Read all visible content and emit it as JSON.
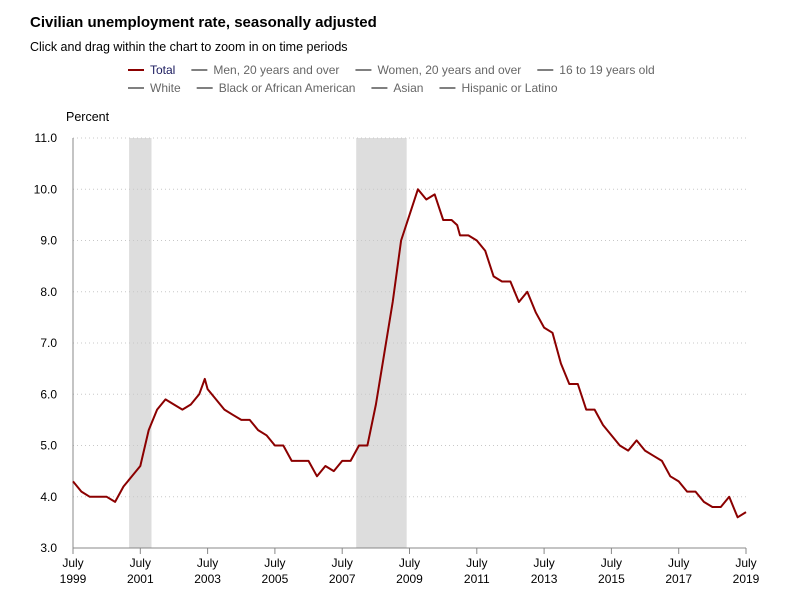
{
  "title": "Civilian unemployment rate, seasonally adjusted",
  "subtitle": "Click and drag within the chart to zoom in on time periods",
  "chart_data": {
    "type": "line",
    "ylabel": "Percent",
    "xlabel": "",
    "ylim": [
      3.0,
      11.0
    ],
    "yticks": [
      "3.0",
      "4.0",
      "5.0",
      "6.0",
      "7.0",
      "8.0",
      "9.0",
      "10.0",
      "11.0"
    ],
    "xlim": [
      "1999-07",
      "2019-07"
    ],
    "xticks": [
      {
        "month": "July",
        "year": "1999"
      },
      {
        "month": "July",
        "year": "2001"
      },
      {
        "month": "July",
        "year": "2003"
      },
      {
        "month": "July",
        "year": "2005"
      },
      {
        "month": "July",
        "year": "2007"
      },
      {
        "month": "July",
        "year": "2009"
      },
      {
        "month": "July",
        "year": "2011"
      },
      {
        "month": "July",
        "year": "2013"
      },
      {
        "month": "July",
        "year": "2015"
      },
      {
        "month": "July",
        "year": "2017"
      },
      {
        "month": "July",
        "year": "2019"
      }
    ],
    "grid": "horizontal dotted",
    "legend_placement": "top",
    "legend": [
      {
        "name": "Total",
        "active": true
      },
      {
        "name": "Men, 20 years and over",
        "active": false
      },
      {
        "name": "Women, 20 years and over",
        "active": false
      },
      {
        "name": "16 to 19 years old",
        "active": false
      },
      {
        "name": "White",
        "active": false
      },
      {
        "name": "Black or African American",
        "active": false
      },
      {
        "name": "Asian",
        "active": false
      },
      {
        "name": "Hispanic or Latino",
        "active": false
      }
    ],
    "recessions": [
      {
        "start": "2001-03",
        "end": "2001-11"
      },
      {
        "start": "2007-12",
        "end": "2009-06"
      }
    ],
    "colors": {
      "total": "#8b0000",
      "inactive": "#808080",
      "recession": "#dddddd",
      "grid": "#c8c8c8",
      "axis": "#888888"
    },
    "series": [
      {
        "name": "Total",
        "x": [
          "1999-07",
          "1999-10",
          "2000-01",
          "2000-04",
          "2000-07",
          "2000-10",
          "2001-01",
          "2001-04",
          "2001-07",
          "2001-10",
          "2002-01",
          "2002-04",
          "2002-07",
          "2002-10",
          "2003-01",
          "2003-04",
          "2003-06",
          "2003-07",
          "2003-10",
          "2004-01",
          "2004-04",
          "2004-07",
          "2004-10",
          "2005-01",
          "2005-04",
          "2005-07",
          "2005-10",
          "2006-01",
          "2006-04",
          "2006-07",
          "2006-10",
          "2007-01",
          "2007-04",
          "2007-07",
          "2007-10",
          "2008-01",
          "2008-04",
          "2008-07",
          "2008-10",
          "2009-01",
          "2009-04",
          "2009-07",
          "2009-10",
          "2010-01",
          "2010-04",
          "2010-07",
          "2010-10",
          "2010-12",
          "2011-01",
          "2011-04",
          "2011-07",
          "2011-10",
          "2012-01",
          "2012-04",
          "2012-07",
          "2012-10",
          "2013-01",
          "2013-04",
          "2013-07",
          "2013-10",
          "2014-01",
          "2014-04",
          "2014-07",
          "2014-10",
          "2015-01",
          "2015-04",
          "2015-07",
          "2015-10",
          "2016-01",
          "2016-04",
          "2016-07",
          "2016-10",
          "2017-01",
          "2017-04",
          "2017-07",
          "2017-10",
          "2018-01",
          "2018-04",
          "2018-07",
          "2018-10",
          "2019-01",
          "2019-04",
          "2019-07"
        ],
        "values": [
          4.3,
          4.1,
          4.0,
          4.0,
          4.0,
          3.9,
          4.2,
          4.4,
          4.6,
          5.3,
          5.7,
          5.9,
          5.8,
          5.7,
          5.8,
          6.0,
          6.3,
          6.1,
          5.9,
          5.7,
          5.6,
          5.5,
          5.5,
          5.3,
          5.2,
          5.0,
          5.0,
          4.7,
          4.7,
          4.7,
          4.4,
          4.6,
          4.5,
          4.7,
          4.7,
          5.0,
          5.0,
          5.8,
          6.8,
          7.8,
          9.0,
          9.5,
          10.0,
          9.8,
          9.9,
          9.4,
          9.4,
          9.3,
          9.1,
          9.1,
          9.0,
          8.8,
          8.3,
          8.2,
          8.2,
          7.8,
          8.0,
          7.6,
          7.3,
          7.2,
          6.6,
          6.2,
          6.2,
          5.7,
          5.7,
          5.4,
          5.2,
          5.0,
          4.9,
          5.1,
          4.9,
          4.8,
          4.7,
          4.4,
          4.3,
          4.1,
          4.1,
          3.9,
          3.8,
          3.8,
          4.0,
          3.6,
          3.7
        ]
      }
    ]
  }
}
